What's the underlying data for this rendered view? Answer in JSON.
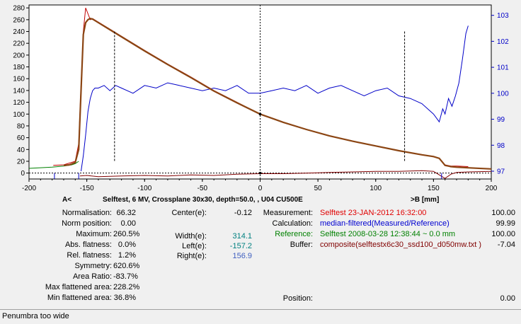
{
  "chart_data": {
    "type": "line",
    "title": "Selftest, 6 MV, Crossplane 30x30, depth=50.0,  , U04  CU500E",
    "left_label": "A<",
    "right_label": ">B  [mm]",
    "xlim": [
      -200,
      200
    ],
    "ylim_left": [
      -10,
      285
    ],
    "ylim_right": [
      96.7,
      103.4
    ],
    "x_ticks": [
      "-200",
      "-150",
      "-100",
      "-50",
      "0",
      "50",
      "100",
      "150",
      "200"
    ],
    "y_ticks_left": [
      "0",
      "20",
      "40",
      "60",
      "80",
      "100",
      "120",
      "140",
      "160",
      "180",
      "200",
      "220",
      "240",
      "260",
      "280"
    ],
    "y_ticks_right": [
      "97",
      "98",
      "99",
      "100",
      "101",
      "102",
      "103"
    ],
    "colors": {
      "measured": "#c00000",
      "calculation": "#0000c8",
      "reference": "#008000",
      "buffer": "#800000",
      "fit": "#8b4513"
    },
    "series": [
      {
        "key": "measured",
        "x": [
          -179,
          -170,
          -160,
          -157,
          -155,
          -153,
          -151,
          -149,
          -147,
          -145,
          -140,
          -130,
          -120,
          -100,
          -80,
          -60,
          -40,
          -20,
          0,
          20,
          40,
          60,
          80,
          100,
          120,
          140,
          150,
          155,
          158,
          160,
          165,
          170,
          180
        ],
        "y": [
          13,
          14,
          20,
          50,
          150,
          240,
          280,
          270,
          260,
          262,
          256,
          244,
          232,
          208,
          185,
          163,
          140,
          120,
          100,
          86,
          74,
          63,
          54,
          46,
          38,
          31,
          28,
          25,
          18,
          14,
          12,
          12,
          11
        ]
      },
      {
        "key": "calculation",
        "x": [
          -155,
          -153,
          -151,
          -149,
          -147,
          -145,
          -143,
          -140,
          -135,
          -130,
          -125,
          -120,
          -110,
          -100,
          -90,
          -80,
          -70,
          -60,
          -50,
          -40,
          -30,
          -20,
          -10,
          0,
          10,
          20,
          30,
          40,
          50,
          60,
          70,
          80,
          90,
          100,
          110,
          120,
          130,
          140,
          150,
          155,
          158,
          160,
          163,
          166,
          169,
          172,
          175,
          178,
          180
        ],
        "y": [
          97.0,
          97.6,
          98.4,
          99.3,
          99.8,
          100.1,
          100.2,
          100.2,
          100.3,
          100.1,
          100.3,
          100.2,
          100.0,
          100.3,
          100.2,
          100.4,
          100.3,
          100.2,
          100.1,
          100.2,
          100.1,
          100.3,
          100.0,
          100.0,
          100.1,
          100.2,
          100.1,
          100.3,
          100.0,
          100.2,
          100.3,
          100.1,
          99.9,
          100.1,
          100.2,
          99.9,
          99.8,
          99.6,
          99.2,
          98.9,
          99.4,
          99.2,
          99.8,
          99.5,
          99.9,
          100.4,
          101.3,
          102.3,
          102.6
        ]
      },
      {
        "key": "reference",
        "x": [
          -200,
          -180,
          -170,
          -163,
          -160,
          -157
        ],
        "y": [
          8,
          10,
          12,
          14,
          16,
          20
        ]
      },
      {
        "key": "buffer",
        "x": [
          -156,
          -150,
          -140,
          -120,
          -100,
          -80,
          -60,
          -40,
          -20,
          0,
          20,
          40,
          60,
          80,
          100,
          120,
          140,
          150,
          155,
          160,
          165,
          170,
          180,
          200
        ],
        "y": [
          -5,
          -4,
          -6,
          -5,
          -4,
          -5,
          -3,
          -4,
          -2,
          -1,
          -1,
          0,
          1,
          2,
          3,
          3,
          4,
          3,
          -3,
          -9,
          -2,
          1,
          2,
          3
        ]
      },
      {
        "key": "fit",
        "x": [
          -170,
          -165,
          -160,
          -157,
          -155,
          -153,
          -151,
          -149,
          -147,
          -145,
          -140,
          -130,
          -120,
          -100,
          -80,
          -60,
          -40,
          -20,
          0,
          20,
          40,
          60,
          80,
          100,
          120,
          140,
          150,
          155,
          158,
          160,
          165,
          170,
          180,
          200
        ],
        "y": [
          13,
          14,
          18,
          40,
          140,
          235,
          255,
          260,
          262,
          261,
          255,
          243,
          231,
          207,
          184,
          162,
          139,
          119,
          100,
          86,
          74,
          63,
          54,
          46,
          38,
          31,
          28,
          25,
          18,
          13,
          11,
          10,
          9,
          7
        ]
      }
    ]
  },
  "stats": {
    "rows": [
      {
        "label": "Normalisation:",
        "value": "66.32"
      },
      {
        "label": "Norm position:",
        "value": "0.00"
      },
      {
        "label": "Maximum:",
        "value": "260.5%"
      },
      {
        "label": "Abs. flatness:",
        "value": "0.0%"
      },
      {
        "label": "Rel. flatness:",
        "value": "1.2%"
      },
      {
        "label": "Symmetry:",
        "value": "620.6%"
      },
      {
        "label": "Area Ratio:",
        "value": "-83.7%"
      },
      {
        "label": "Max flattened area:",
        "value": "228.2%"
      },
      {
        "label": "Min flattened area:",
        "value": "36.8%"
      }
    ],
    "center_label": "Center(e):",
    "center_value": "-0.12",
    "width_label": "Width(e):",
    "width_value": "314.1",
    "left_label": "Left(e):",
    "left_value": "-157.2",
    "right_label": "Right(e):",
    "right_value": "156.9",
    "measurement_label": "Measurement:",
    "measurement_text": "Selftest 23-JAN-2012  16:32:00",
    "measurement_value": "100.00",
    "calculation_label": "Calculation:",
    "calculation_text": "median-filtered(Measured/Reference)",
    "calculation_value": "99.99",
    "reference_label": "Reference:",
    "reference_text": "Selftest 2008-03-28 12:38:44 ~ 0.0 mm",
    "reference_value": "100.00",
    "buffer_label": "Buffer:",
    "buffer_text": "composite(selftestx6c30_ssd100_d050mw.txt )",
    "buffer_value": "-7.04",
    "position_label": "Position:",
    "position_value": "0.00"
  },
  "status": "Penumbra too wide"
}
